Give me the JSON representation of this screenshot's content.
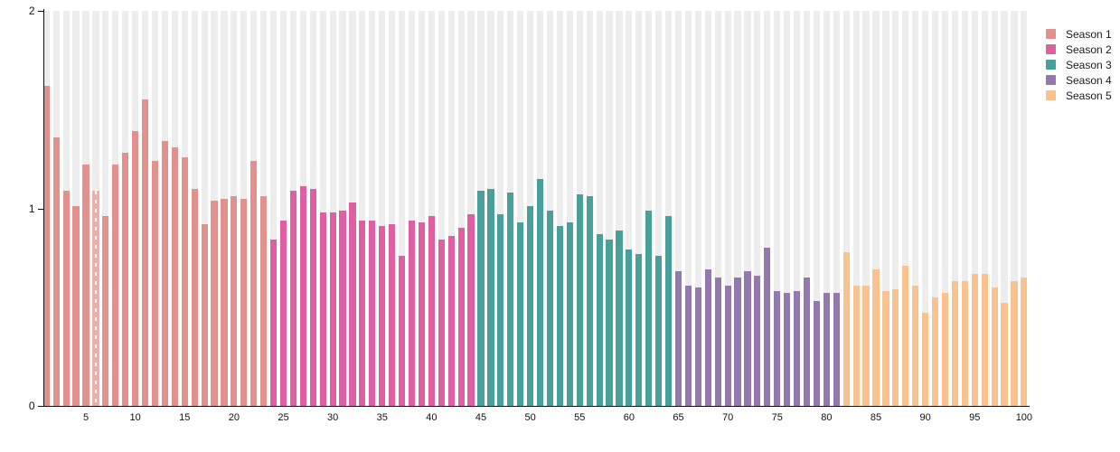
{
  "chart_data": {
    "type": "bar",
    "title": "",
    "xlabel": "",
    "ylabel": "",
    "x_start": 1,
    "x_end": 100,
    "values": [
      1.62,
      1.36,
      1.09,
      1.01,
      1.22,
      1.09,
      0.96,
      1.22,
      1.28,
      1.39,
      1.55,
      1.24,
      1.34,
      1.31,
      1.26,
      1.1,
      0.92,
      1.04,
      1.05,
      1.06,
      1.05,
      1.24,
      1.06,
      0.84,
      0.94,
      1.09,
      1.11,
      1.1,
      0.98,
      0.98,
      0.99,
      1.03,
      0.94,
      0.94,
      0.91,
      0.92,
      0.76,
      0.94,
      0.93,
      0.96,
      0.84,
      0.86,
      0.9,
      0.97,
      1.09,
      1.1,
      0.97,
      1.08,
      0.93,
      1.01,
      1.15,
      0.99,
      0.91,
      0.93,
      1.07,
      1.06,
      0.87,
      0.84,
      0.89,
      0.79,
      0.77,
      0.99,
      0.76,
      0.96,
      0.68,
      0.61,
      0.6,
      0.69,
      0.65,
      0.61,
      0.65,
      0.68,
      0.66,
      0.8,
      0.58,
      0.57,
      0.58,
      0.65,
      0.53,
      0.57,
      0.57,
      0.78,
      0.61,
      0.61,
      0.69,
      0.58,
      0.59,
      0.71,
      0.61,
      0.47,
      0.55,
      0.57,
      0.63,
      0.63,
      0.67,
      0.67,
      0.6,
      0.52,
      0.63,
      0.65
    ],
    "seasons": [
      {
        "name": "Season 1",
        "color": "#e2918d",
        "start": 1,
        "end": 23
      },
      {
        "name": "Season 2",
        "color": "#e05fa2",
        "start": 24,
        "end": 44
      },
      {
        "name": "Season 3",
        "color": "#48a09b",
        "start": 45,
        "end": 64
      },
      {
        "name": "Season 4",
        "color": "#9379ad",
        "start": 65,
        "end": 81
      },
      {
        "name": "Season 5",
        "color": "#f9c28f",
        "start": 82,
        "end": 100
      }
    ],
    "highlighted_bar": 6,
    "highlight_color": "#ecafab",
    "xticks": [
      "5",
      "10",
      "15",
      "20",
      "25",
      "30",
      "35",
      "40",
      "45",
      "50",
      "55",
      "60",
      "65",
      "70",
      "75",
      "80",
      "85",
      "90",
      "95",
      "100"
    ],
    "xtick_step": 5,
    "yticks": [
      "0",
      "1",
      "2"
    ],
    "ylim": [
      0,
      2
    ],
    "grid": "column-stripes",
    "stripe_color": "#ededed",
    "legend_position": "top-right",
    "legend_items": [
      "Season 1",
      "Season 2",
      "Season 3",
      "Season 4",
      "Season 5"
    ]
  }
}
